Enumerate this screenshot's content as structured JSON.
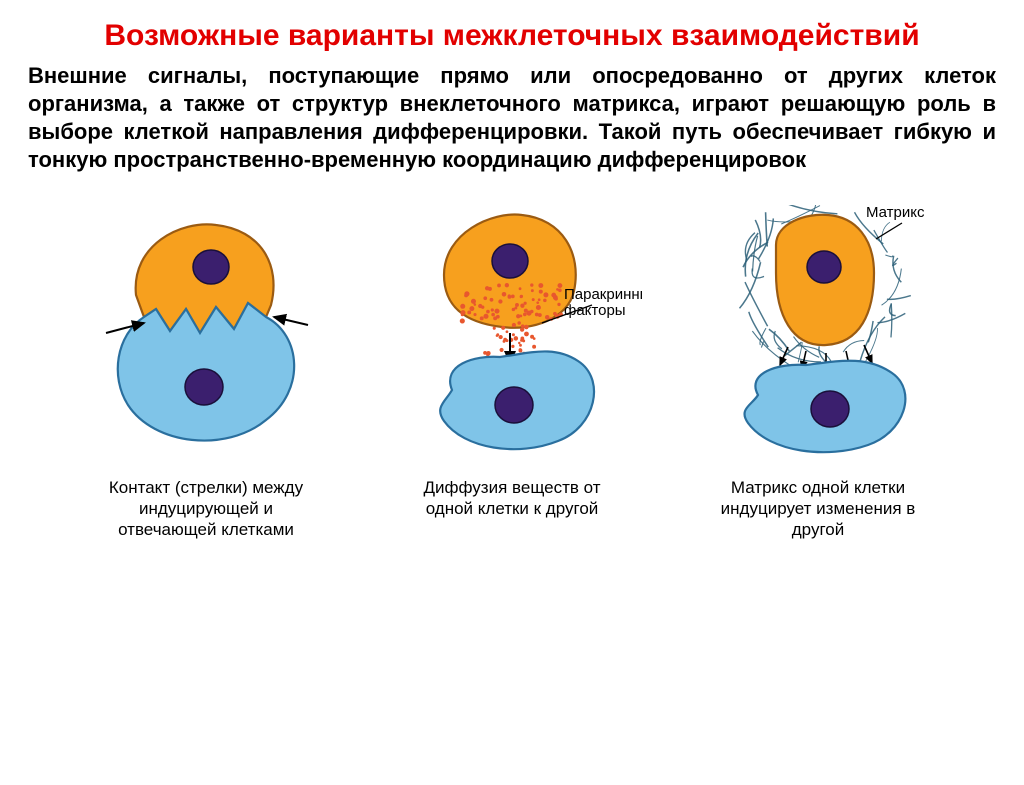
{
  "title_color": "#e20000",
  "text_color": "#000000",
  "title": "Возможные варианты межклеточных взаимодействий",
  "body": "Внешние сигналы, поступающие прямо или опосредованно от других клеток организма, а также от структур внеклеточного матрикса, играют решающую роль в выборе клеткой направления дифференцировки. Такой путь обеспечивает гибкую и тонкую пространственно-временную координацию дифференцировок",
  "cell_style": {
    "top_fill": "#f7a01e",
    "top_stroke": "#9b5b12",
    "bottom_fill": "#7fc4e8",
    "bottom_stroke": "#2a6f9e",
    "nucleus_fill": "#3b1f6e",
    "nucleus_stroke": "#1a0f3a",
    "stroke_width": 2.2
  },
  "panels": [
    {
      "id": "contact",
      "caption": "Контакт (стрелки) между индуцирующей и отвечающей клетками"
    },
    {
      "id": "diffusion",
      "caption": "Диффузия веществ от одной клетки к другой",
      "paracrine_label": "Паракринные факторы",
      "dot_color": "#e8572e"
    },
    {
      "id": "matrix",
      "caption": "Матрикс одной клетки индуцирует изменения в другой",
      "matrix_label": "Матрикс",
      "matrix_stroke": "#2b5f78"
    }
  ],
  "label_fontsize": 16,
  "caption_fontsize": 17,
  "arrow_color": "#000000"
}
